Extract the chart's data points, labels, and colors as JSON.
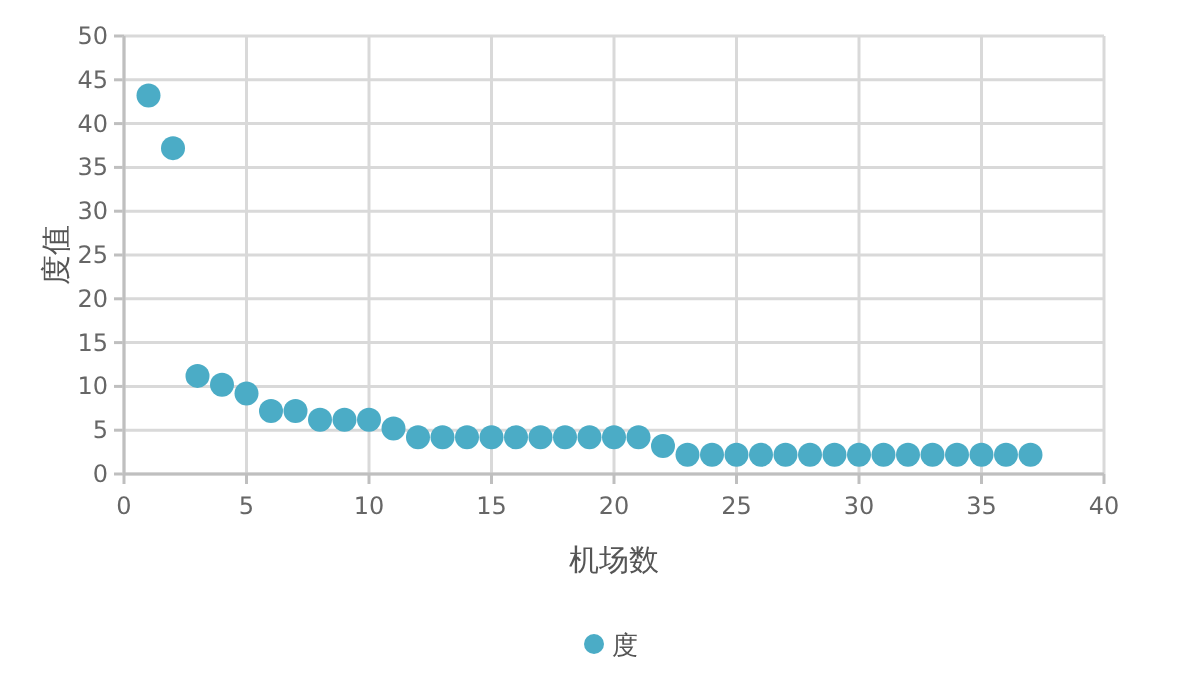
{
  "chart_data": {
    "type": "scatter",
    "xlabel": "机场数",
    "ylabel": "度值",
    "xlim": [
      0,
      40
    ],
    "xticks": [
      0,
      5,
      10,
      15,
      20,
      25,
      30,
      35,
      40
    ],
    "ylim": [
      0,
      50
    ],
    "yticks": [
      0,
      5,
      10,
      15,
      20,
      25,
      30,
      35,
      40,
      45,
      50
    ],
    "grid": true,
    "legend": "bottom",
    "marker": "circle",
    "x": [
      1,
      2,
      3,
      4,
      5,
      6,
      7,
      8,
      9,
      10,
      11,
      12,
      13,
      14,
      15,
      16,
      17,
      18,
      19,
      20,
      21,
      22,
      23,
      24,
      25,
      26,
      27,
      28,
      29,
      30,
      31,
      32,
      33,
      34,
      35,
      36,
      37
    ],
    "series": [
      {
        "name": "度",
        "color": "#4bacc6",
        "values": [
          43.2,
          37.2,
          11.2,
          10.2,
          9.2,
          7.2,
          7.2,
          6.2,
          6.2,
          6.2,
          5.2,
          4.2,
          4.2,
          4.2,
          4.2,
          4.2,
          4.2,
          4.2,
          4.2,
          4.2,
          4.2,
          3.2,
          2.2,
          2.2,
          2.2,
          2.2,
          2.2,
          2.2,
          2.2,
          2.2,
          2.2,
          2.2,
          2.2,
          2.2,
          2.2,
          2.2,
          2.2
        ]
      }
    ]
  }
}
